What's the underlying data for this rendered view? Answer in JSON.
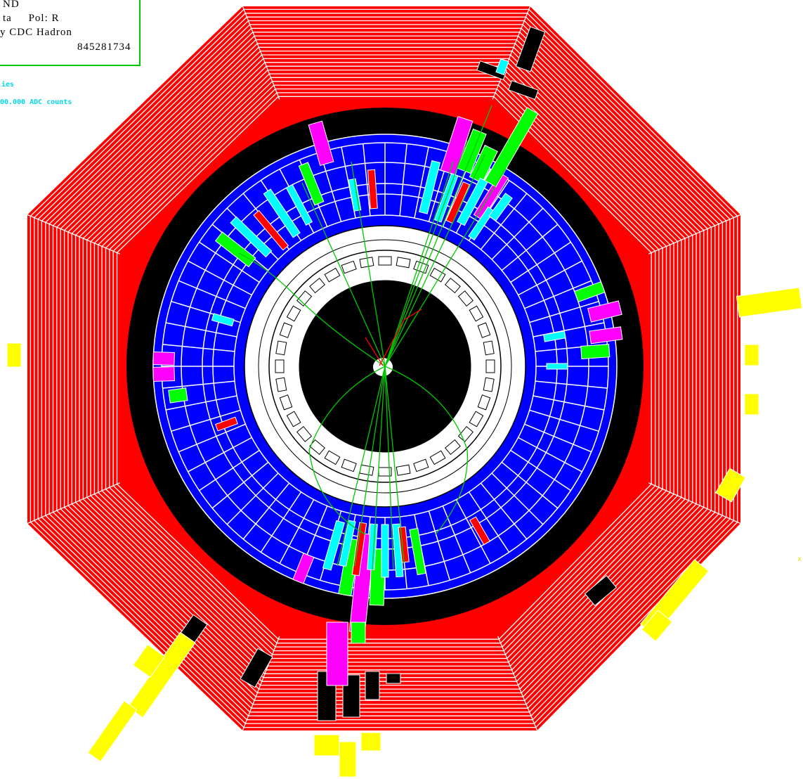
{
  "header": {
    "line1": "ND",
    "line2": "ta     Pol: R",
    "line3": "y CDC Hadron",
    "line4": "845281734"
  },
  "legend": {
    "line1": "ies",
    "line2": "00.000 ADC counts"
  },
  "corner_mark": "x",
  "colors": {
    "magnet_coil": "#ff0000",
    "iron_stripe": "#ffffff",
    "cryostat": "#000000",
    "calorimeter": "#0000ff",
    "hit_magenta": "#ff00ff",
    "hit_green": "#00ff00",
    "hit_cyan": "#00ffff",
    "hit_red": "#ff0000",
    "muon_yellow": "#ffff00",
    "track": "#00c800",
    "frame_border": "#00c800"
  },
  "jets": {
    "upper_right": "tracks and calorimeter towers pointing up-right",
    "lower": "tracks and calorimeter towers pointing down"
  }
}
